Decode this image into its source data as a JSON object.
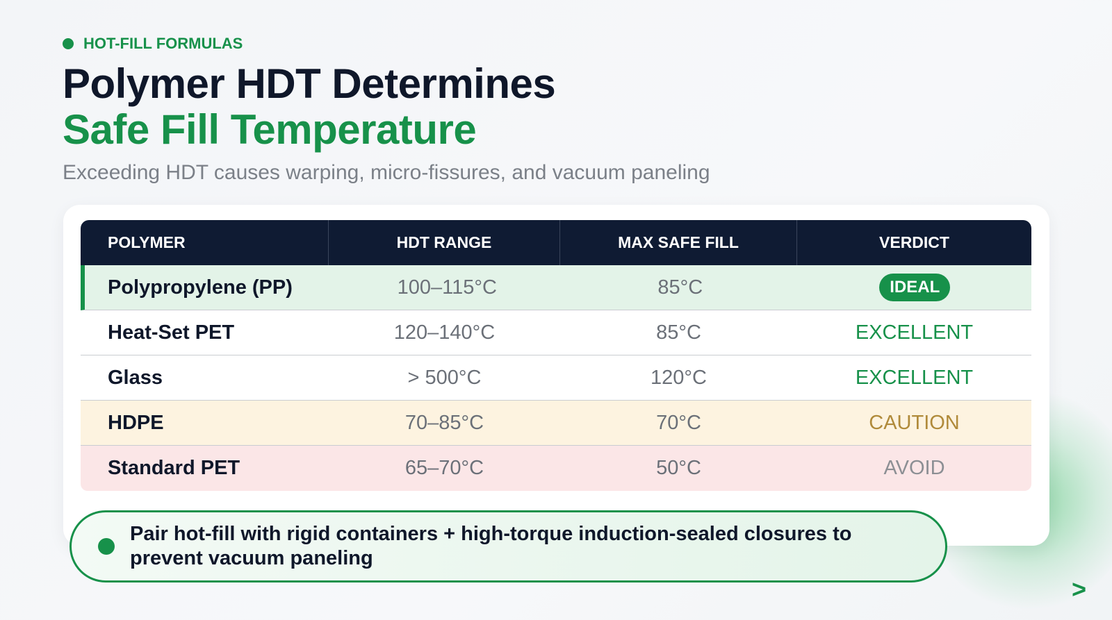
{
  "eyebrow": "HOT-FILL FORMULAS",
  "title": {
    "line1": "Polymer HDT Determines",
    "line2": "Safe Fill Temperature"
  },
  "subtitle": "Exceeding HDT causes warping, micro-fissures, and vacuum paneling",
  "table": {
    "headers": [
      "POLYMER",
      "HDT RANGE",
      "MAX SAFE FILL",
      "VERDICT"
    ],
    "rows": [
      [
        "Polypropylene (PP)",
        "100–115°C",
        "85°C",
        "IDEAL"
      ],
      [
        "Heat-Set PET",
        "120–140°C",
        "85°C",
        "EXCELLENT"
      ],
      [
        "Glass",
        "> 500°C",
        "120°C",
        "EXCELLENT"
      ],
      [
        "HDPE",
        "70–85°C",
        "70°C",
        "CAUTION"
      ],
      [
        "Standard PET",
        "65–70°C",
        "50°C",
        "AVOID"
      ]
    ]
  },
  "callout": "Pair hot-fill with rigid containers + high-torque induction-sealed closures to prevent vacuum paneling",
  "nav_next": ">"
}
